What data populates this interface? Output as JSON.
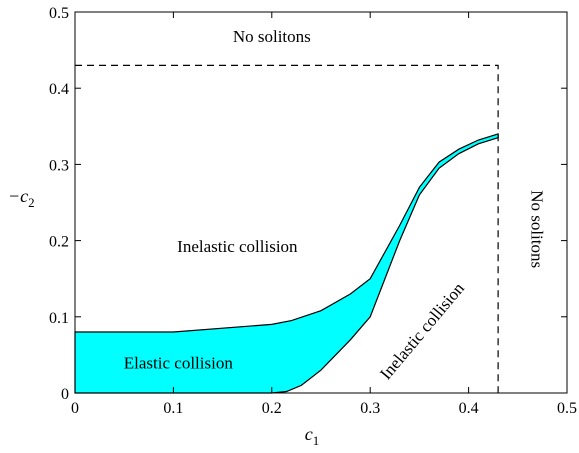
{
  "chart_data": {
    "type": "area",
    "xlabel": "c",
    "xlabel_sub": "1",
    "ylabel": "−c",
    "ylabel_sub": "2",
    "xlim": [
      0,
      0.5
    ],
    "ylim": [
      0,
      0.5
    ],
    "xticks": [
      0,
      0.1,
      0.2,
      0.3,
      0.4,
      0.5
    ],
    "xtick_labels": [
      "0",
      "0.1",
      "0.2",
      "0.3",
      "0.4",
      "0.5"
    ],
    "yticks": [
      0,
      0.1,
      0.2,
      0.3,
      0.4,
      0.5
    ],
    "ytick_labels": [
      "0",
      "0.1",
      "0.2",
      "0.3",
      "0.4",
      "0.5"
    ],
    "grid": false,
    "fill_color": "#00ffff",
    "elastic_region": {
      "upper": [
        [
          0,
          0.08
        ],
        [
          0.1,
          0.08
        ],
        [
          0.2,
          0.09
        ],
        [
          0.22,
          0.095
        ],
        [
          0.25,
          0.108
        ],
        [
          0.28,
          0.13
        ],
        [
          0.3,
          0.15
        ],
        [
          0.33,
          0.22
        ],
        [
          0.35,
          0.27
        ],
        [
          0.37,
          0.303
        ],
        [
          0.39,
          0.32
        ],
        [
          0.41,
          0.332
        ],
        [
          0.43,
          0.34
        ]
      ],
      "lower": [
        [
          0,
          0
        ],
        [
          0.2,
          0
        ],
        [
          0.215,
          0.002
        ],
        [
          0.23,
          0.01
        ],
        [
          0.25,
          0.03
        ],
        [
          0.28,
          0.07
        ],
        [
          0.3,
          0.1
        ],
        [
          0.33,
          0.2
        ],
        [
          0.35,
          0.26
        ],
        [
          0.37,
          0.295
        ],
        [
          0.39,
          0.314
        ],
        [
          0.41,
          0.327
        ],
        [
          0.43,
          0.335
        ]
      ]
    },
    "boundary": {
      "c1": 0.43,
      "c2": 0.43
    },
    "annotations": [
      {
        "text": "No solitons",
        "x": 0.2,
        "y": 0.466
      },
      {
        "text": "Inelastic collision",
        "x": 0.165,
        "y": 0.19
      },
      {
        "text": "Elastic collision",
        "x": 0.105,
        "y": 0.037
      },
      {
        "text": "Inelastic collision",
        "x": 0.354,
        "y": 0.08,
        "rotate": -50
      },
      {
        "text": "No solitons",
        "x": 0.468,
        "y": 0.215,
        "rotate": 90
      }
    ]
  }
}
